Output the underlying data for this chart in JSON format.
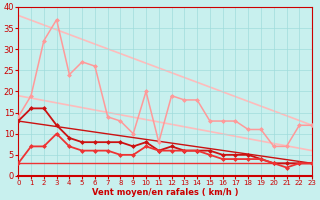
{
  "xlabel": "Vent moyen/en rafales ( km/h )",
  "bg_color": "#c8f0ee",
  "grid_color": "#a0dcdc",
  "xlim": [
    0,
    23
  ],
  "ylim": [
    0,
    40
  ],
  "xticks": [
    0,
    1,
    2,
    3,
    4,
    5,
    6,
    7,
    8,
    9,
    10,
    11,
    12,
    13,
    14,
    15,
    16,
    17,
    18,
    19,
    20,
    21,
    22,
    23
  ],
  "yticks": [
    0,
    5,
    10,
    15,
    20,
    25,
    30,
    35,
    40
  ],
  "series": [
    {
      "comment": "top straight light pink line: from ~38 at x=2 down to ~12 at x=23",
      "x": [
        0,
        23
      ],
      "y": [
        38,
        12
      ],
      "color": "#ffbbbb",
      "lw": 1.2,
      "marker": null,
      "ms": 0,
      "ls": "-",
      "zorder": 1
    },
    {
      "comment": "bottom straight light pink line: from ~19 at x=0 down to ~6 at x=23",
      "x": [
        0,
        23
      ],
      "y": [
        19,
        6
      ],
      "color": "#ffbbbb",
      "lw": 1.2,
      "marker": null,
      "ms": 0,
      "ls": "-",
      "zorder": 1
    },
    {
      "comment": "jagged pink line with diamond markers - upper",
      "x": [
        0,
        1,
        2,
        3,
        4,
        5,
        6,
        7,
        8,
        9,
        10,
        11,
        12,
        13,
        14,
        15,
        16,
        17,
        18,
        19,
        20,
        21,
        22,
        23
      ],
      "y": [
        14,
        19,
        32,
        37,
        24,
        27,
        26,
        14,
        13,
        10,
        20,
        8,
        19,
        18,
        18,
        13,
        13,
        13,
        11,
        11,
        7,
        7,
        12,
        12
      ],
      "color": "#ff9999",
      "lw": 1.1,
      "marker": "D",
      "ms": 2.5,
      "ls": "-",
      "zorder": 3
    },
    {
      "comment": "medium red jagged line with markers",
      "x": [
        0,
        1,
        2,
        3,
        4,
        5,
        6,
        7,
        8,
        9,
        10,
        11,
        12,
        13,
        14,
        15,
        16,
        17,
        18,
        19,
        20,
        21,
        22,
        23
      ],
      "y": [
        13,
        16,
        16,
        12,
        9,
        8,
        8,
        8,
        8,
        7,
        8,
        6,
        7,
        6,
        6,
        6,
        5,
        5,
        5,
        4,
        3,
        3,
        3,
        3
      ],
      "color": "#cc1111",
      "lw": 1.3,
      "marker": "D",
      "ms": 2.5,
      "ls": "-",
      "zorder": 4
    },
    {
      "comment": "lower dark red jagged line with markers",
      "x": [
        0,
        1,
        2,
        3,
        4,
        5,
        6,
        7,
        8,
        9,
        10,
        11,
        12,
        13,
        14,
        15,
        16,
        17,
        18,
        19,
        20,
        21,
        22,
        23
      ],
      "y": [
        3,
        7,
        7,
        10,
        7,
        6,
        6,
        6,
        5,
        5,
        7,
        6,
        6,
        6,
        6,
        5,
        4,
        4,
        4,
        4,
        3,
        2,
        3,
        3
      ],
      "color": "#ee3333",
      "lw": 1.3,
      "marker": "D",
      "ms": 2.5,
      "ls": "-",
      "zorder": 5
    },
    {
      "comment": "straight diagonal dark red line top",
      "x": [
        0,
        23
      ],
      "y": [
        13,
        3
      ],
      "color": "#cc1111",
      "lw": 1.0,
      "marker": null,
      "ms": 0,
      "ls": "-",
      "zorder": 2
    },
    {
      "comment": "straight diagonal red line bottom",
      "x": [
        0,
        23
      ],
      "y": [
        3,
        3
      ],
      "color": "#ee3333",
      "lw": 1.0,
      "marker": null,
      "ms": 0,
      "ls": "-",
      "zorder": 2
    }
  ]
}
